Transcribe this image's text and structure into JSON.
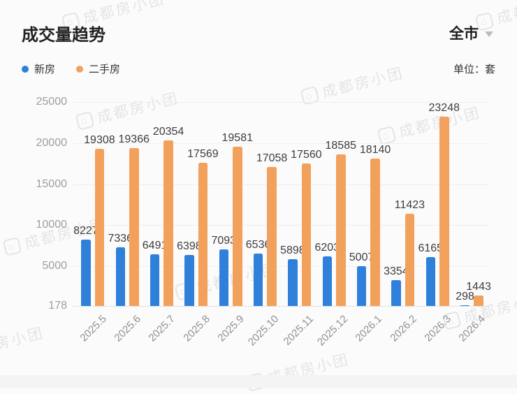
{
  "header": {
    "title": "成交量趋势",
    "region_selector": {
      "label": "全市"
    },
    "unit_label": "单位：套"
  },
  "watermark": {
    "text": "成都房小团",
    "icon": "house-icon"
  },
  "colors": {
    "new_homes": "#2E80DB",
    "secondhand_homes": "#F2A15C",
    "axis_text": "#9d9da1",
    "value_text": "#3d3d3f",
    "gridline": "#efefef"
  },
  "chart_data": {
    "type": "bar",
    "title": "成交量趋势",
    "unit": "套",
    "categories": [
      "2025.5",
      "2025.6",
      "2025.7",
      "2025.8",
      "2025.9",
      "2025.10",
      "2025.11",
      "2025.12",
      "2026.1",
      "2026.2",
      "2026.3",
      "2026.4"
    ],
    "series": [
      {
        "name": "新房",
        "color": "#2E80DB",
        "values": [
          8227,
          7336,
          6491,
          6398,
          7093,
          6536,
          5898,
          6203,
          5007,
          3354,
          6165,
          298
        ]
      },
      {
        "name": "二手房",
        "color": "#F2A15C",
        "values": [
          19308,
          19366,
          20354,
          17569,
          19581,
          17058,
          17560,
          18585,
          18140,
          11423,
          23248,
          1443
        ]
      }
    ],
    "ylim": [
      178,
      25000
    ],
    "yticks": [
      178,
      5000,
      10000,
      15000,
      20000,
      25000
    ],
    "grid": true,
    "value_labels": true,
    "legend_position": "top-left",
    "xlabel": "",
    "ylabel": ""
  }
}
